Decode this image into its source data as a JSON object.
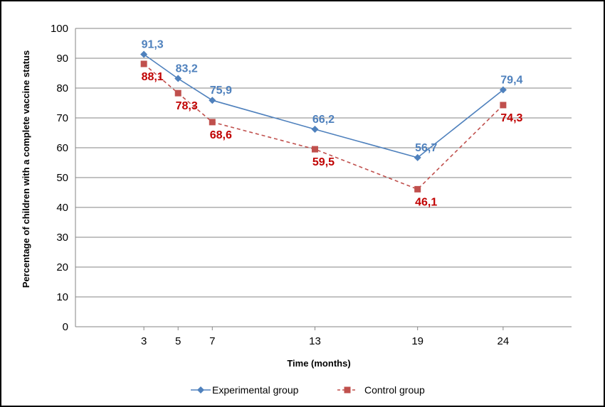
{
  "chart_data": {
    "type": "line",
    "title": "",
    "xlabel": "Time (months)",
    "ylabel": "Percentage of children with a complete vaccine status",
    "x": [
      3,
      5,
      7,
      13,
      19,
      24
    ],
    "x_tick_labels": [
      "3",
      "5",
      "7",
      "13",
      "19",
      "24"
    ],
    "xlim": [
      -1,
      28
    ],
    "ylim": [
      0,
      100
    ],
    "y_tick_labels": [
      "0",
      "10",
      "20",
      "30",
      "40",
      "50",
      "60",
      "70",
      "80",
      "90",
      "100"
    ],
    "grid": "horizontal",
    "legend_position": "bottom",
    "series": [
      {
        "name": "Experimental group",
        "values": [
          91.3,
          83.2,
          75.9,
          66.2,
          56.7,
          79.4
        ],
        "labels": [
          "91,3",
          "83,2",
          "75,9",
          "66,2",
          "56,7",
          "79,4"
        ],
        "color": "#4f81bd",
        "label_color": "#4f81bd",
        "line_style": "solid",
        "marker": "diamond"
      },
      {
        "name": "Control group",
        "values": [
          88.1,
          78.3,
          68.6,
          59.5,
          46.1,
          74.3
        ],
        "labels": [
          "88,1",
          "78,3",
          "68,6",
          "59,5",
          "46,1",
          "74,3"
        ],
        "color": "#c0504d",
        "label_color": "#c00000",
        "line_style": "dashed",
        "marker": "square"
      }
    ]
  }
}
